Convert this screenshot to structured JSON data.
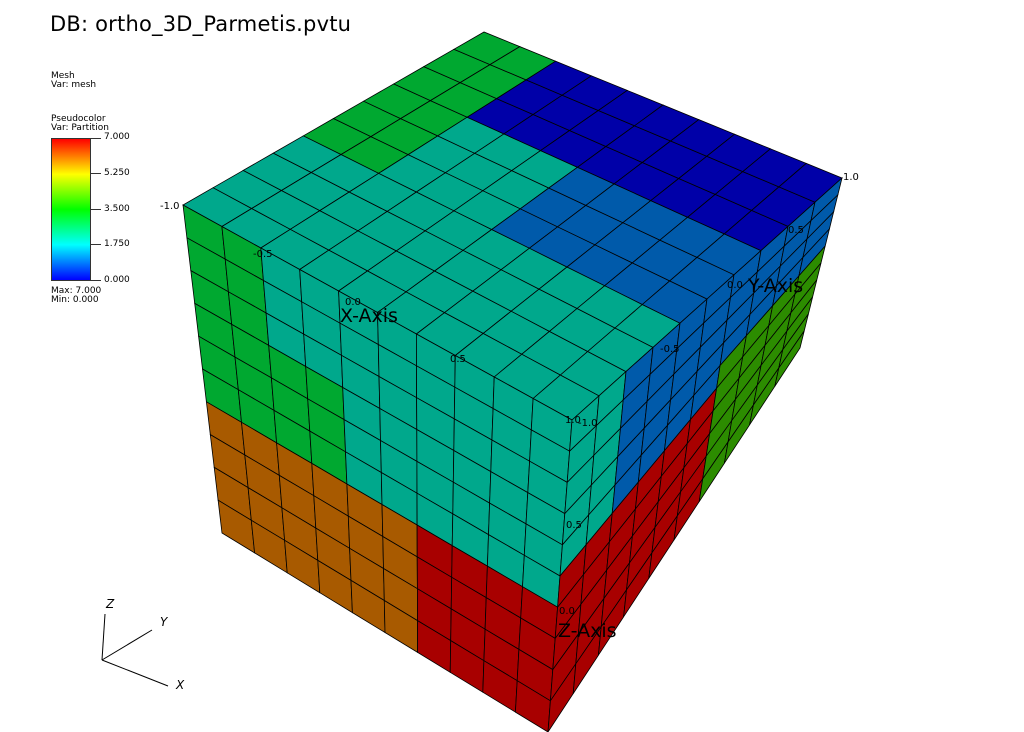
{
  "title": "DB: ortho_3D_Parmetis.pvtu",
  "mesh_legend": {
    "plot_name": "Mesh",
    "var_label": "Var: mesh"
  },
  "pseudocolor_legend": {
    "plot_name": "Pseudocolor",
    "var_label": "Var: Partition",
    "ticks": [
      "7.000",
      "5.250",
      "3.500",
      "1.750",
      "0.000"
    ],
    "max_label": "Max:  7.000",
    "min_label": "Min:  0.000"
  },
  "axes": {
    "x_title": "X-Axis",
    "y_title": "Y-Axis",
    "z_title": "Z-Axis",
    "x_ticks": [
      "-1.0",
      "-0.5",
      "0.0",
      "0.5",
      "1.0"
    ],
    "y_ticks": [
      "-1.0",
      "-0.5",
      "0.0",
      "0.5",
      "1.0"
    ],
    "z_ticks": [
      "0.0",
      "0.5"
    ]
  },
  "triad": {
    "x": "X",
    "y": "Y",
    "z": "Z"
  },
  "partition_colors": {
    "0": "#0000a8",
    "1": "#005aaa",
    "2": "#00a88c",
    "3": "#00a830",
    "4": "#2c8c00",
    "5": "#a85a00",
    "6": "#a80000"
  }
}
